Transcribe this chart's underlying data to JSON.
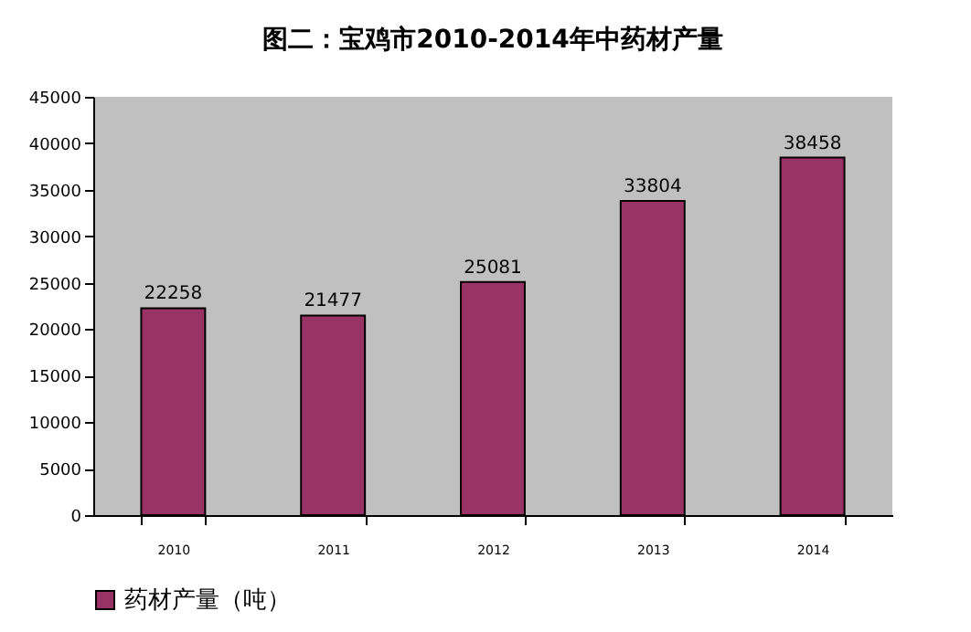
{
  "chart_data": {
    "type": "bar",
    "title": "图二：宝鸡市2010-2014年中药材产量",
    "categories": [
      "2010",
      "2011",
      "2012",
      "2013",
      "2014"
    ],
    "series": [
      {
        "name": "药材产量（吨）",
        "color": "#993366",
        "values": [
          22258,
          21477,
          25081,
          33804,
          38458
        ]
      }
    ],
    "ylim": [
      0,
      45000
    ],
    "yticks": [
      0,
      5000,
      10000,
      15000,
      20000,
      25000,
      30000,
      35000,
      40000,
      45000
    ],
    "data_labels": true,
    "grid": false,
    "legend": "bottom"
  }
}
